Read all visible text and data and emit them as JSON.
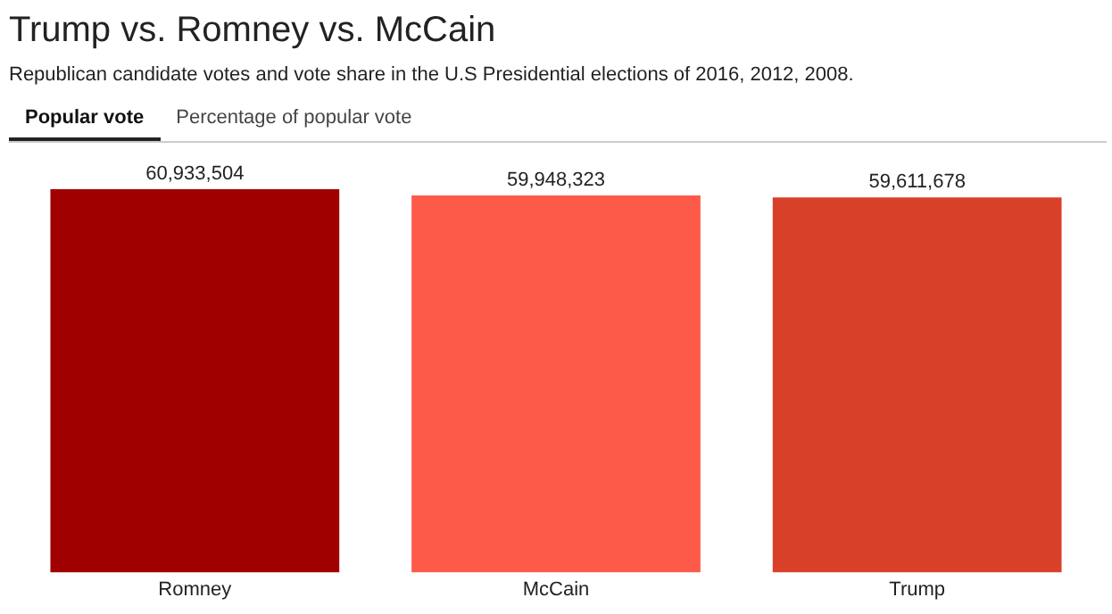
{
  "chart_data": {
    "type": "bar",
    "title": "Trump vs. Romney vs. McCain",
    "subtitle": "Republican candidate votes and vote share in the U.S Presidential elections of 2016, 2012, 2008.",
    "annotations": [
      "Popular vote",
      "Percentage of popular vote"
    ],
    "categories": [
      "Romney",
      "McCain",
      "Trump"
    ],
    "values": [
      60933504,
      59948323,
      59611678
    ],
    "colors": [
      "#a10000",
      "#fe5a4a",
      "#d9402a"
    ],
    "value_labels": [
      "60,933,504",
      "59,948,323",
      "59,611,678"
    ],
    "grid": false,
    "legend": false
  }
}
